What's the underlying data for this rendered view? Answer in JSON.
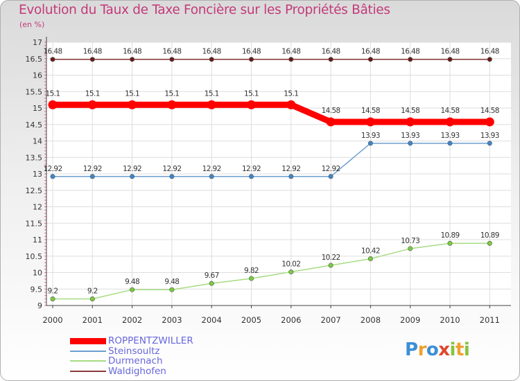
{
  "title": "Evolution du Taux de Taxe Foncière sur les Propriétés Bâties",
  "unit_label": "(en %)",
  "brand": {
    "letters": [
      {
        "ch": "P",
        "color": "#3b8fd6"
      },
      {
        "ch": "r",
        "color": "#f0a030"
      },
      {
        "ch": "o",
        "color": "#3b8fd6"
      },
      {
        "ch": "x",
        "color": "#e0462a"
      },
      {
        "ch": "i",
        "color": "#86c43c"
      },
      {
        "ch": "t",
        "color": "#f0a030"
      },
      {
        "ch": "i",
        "color": "#86c43c"
      }
    ]
  },
  "chart_data": {
    "type": "line",
    "title": "Evolution du Taux de Taxe Foncière sur les Propriétés Bâties",
    "ylabel": "(en %)",
    "xlabel": "",
    "ylim": [
      9,
      17
    ],
    "yticks": [
      "9",
      "9.5",
      "10",
      "10.5",
      "11",
      "11.5",
      "12",
      "12.5",
      "13",
      "13.5",
      "14",
      "14.5",
      "15",
      "15.5",
      "16",
      "16.5",
      "17"
    ],
    "categories": [
      "2000",
      "2001",
      "2002",
      "2003",
      "2004",
      "2005",
      "2006",
      "2007",
      "2008",
      "2009",
      "2010",
      "2011"
    ],
    "grid": true,
    "series": [
      {
        "name": "ROPPENTZWILLER",
        "color": "#ff0000",
        "values": [
          15.1,
          15.1,
          15.1,
          15.1,
          15.1,
          15.1,
          15.1,
          14.58,
          14.58,
          14.58,
          14.58,
          14.58
        ],
        "labels": [
          "15.1",
          "15.1",
          "15.1",
          "15.1",
          "15.1",
          "15.1",
          "15.1",
          "14.58",
          "14.58",
          "14.58",
          "14.58",
          "14.58"
        ]
      },
      {
        "name": "Steinsoultz",
        "color": "#6c9fd0",
        "values": [
          12.92,
          12.92,
          12.92,
          12.92,
          12.92,
          12.92,
          12.92,
          12.92,
          13.93,
          13.93,
          13.93,
          13.93
        ],
        "labels": [
          "12.92",
          "12.92",
          "12.92",
          "12.92",
          "12.92",
          "12.92",
          "12.92",
          "12.92",
          "13.93",
          "13.93",
          "13.93",
          "13.93"
        ]
      },
      {
        "name": "Durmenach",
        "color": "#a6dc82",
        "values": [
          9.2,
          9.2,
          9.48,
          9.48,
          9.67,
          9.82,
          10.02,
          10.22,
          10.42,
          10.73,
          10.89,
          10.89
        ],
        "labels": [
          "9.2",
          "9.2",
          "9.48",
          "9.48",
          "9.67",
          "9.82",
          "10.02",
          "10.22",
          "10.42",
          "10.73",
          "10.89",
          "10.89"
        ]
      },
      {
        "name": "Waldighofen",
        "color": "#8b3a3a",
        "values": [
          16.48,
          16.48,
          16.48,
          16.48,
          16.48,
          16.48,
          16.48,
          16.48,
          16.48,
          16.48,
          16.48,
          16.48
        ],
        "labels": [
          "16.48",
          "16.48",
          "16.48",
          "16.48",
          "16.48",
          "16.48",
          "16.48",
          "16.48",
          "16.48",
          "16.48",
          "16.48",
          "16.48"
        ]
      }
    ]
  }
}
